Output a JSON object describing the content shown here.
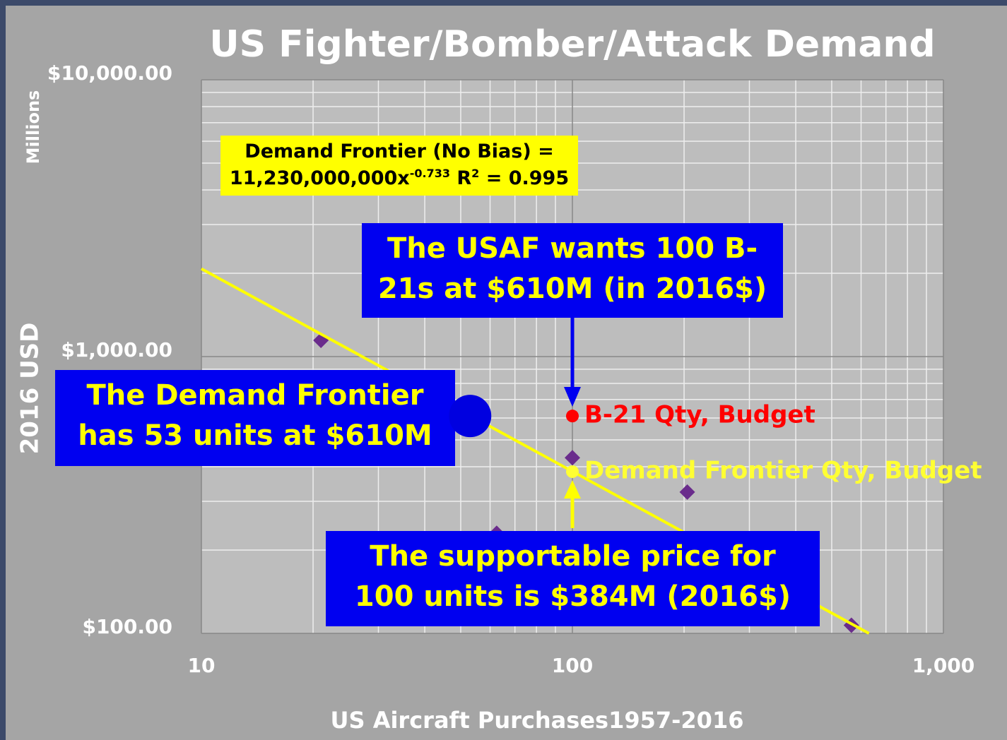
{
  "chart_data": {
    "type": "scatter",
    "title": "US Fighter/Bomber/Attack Demand",
    "xlabel": "US Aircraft Purchases1957-2016",
    "ylabel": "2016  USD",
    "yunit": "Millions",
    "xscale": "log",
    "yscale": "log",
    "xlim": [
      10,
      1000
    ],
    "ylim": [
      100,
      10000
    ],
    "xticks": [
      10,
      100,
      {
        "value": 1000,
        "label": "1,000"
      }
    ],
    "yticks": [
      {
        "value": 100,
        "label": "$100.00"
      },
      {
        "value": 1000,
        "label": "$1,000.00"
      },
      {
        "value": 10000,
        "label": "$10,000.00"
      }
    ],
    "xminor": [
      20,
      30,
      40,
      50,
      60,
      70,
      80,
      90,
      200,
      300,
      400,
      500,
      600,
      700,
      800,
      900
    ],
    "yminor": [
      200,
      300,
      400,
      500,
      600,
      700,
      800,
      900,
      2000,
      3000,
      4000,
      5000,
      6000,
      7000,
      8000,
      9000
    ],
    "grid": true,
    "series": [
      {
        "marker": "diamond",
        "color": "#6a2c8c",
        "x": [
          21,
          62.5,
          100,
          204,
          565
        ],
        "values": [
          1145,
          230,
          431,
          324,
          107
        ]
      },
      {
        "marker": "line",
        "color": "#ffff00",
        "x": [
          10,
          630
        ],
        "values": [
          2076,
          100
        ]
      },
      {
        "marker": "circle",
        "color": "#ff0000",
        "label": "B-21 Qty, Budget",
        "x": [
          100
        ],
        "values": [
          610
        ]
      },
      {
        "marker": "circle",
        "color": "#ffff33",
        "label": "Demand Frontier Qty, Budget",
        "x": [
          100
        ],
        "values": [
          384
        ]
      },
      {
        "marker": "big-circle",
        "color": "#0000e0",
        "x": [
          53
        ],
        "values": [
          610
        ]
      }
    ],
    "equation": {
      "line1": "Demand Frontier (No Bias) =",
      "coef": "11,230,000,000x",
      "exp": "-0.733",
      "r": "R",
      "r_exp": "2",
      "rest": "= 0.995"
    },
    "annotations": [
      {
        "lines": [
          "The USAF wants 100 B-",
          "21s at $610M (in 2016$)"
        ]
      },
      {
        "lines": [
          "The Demand Frontier",
          "has 53 units at $610M"
        ]
      },
      {
        "lines": [
          "The supportable price for",
          "100 units is $384M (2016$)"
        ]
      }
    ]
  }
}
